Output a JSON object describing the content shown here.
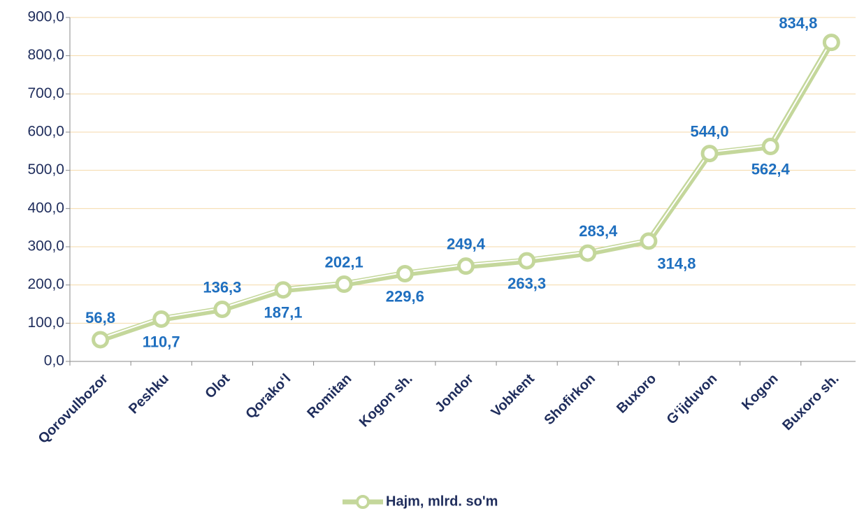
{
  "chart_data": {
    "type": "line",
    "categories": [
      "Qorovulbozor",
      "Peshku",
      "Olot",
      "Qorako‘l",
      "Romitan",
      "Kogon sh.",
      "Jondor",
      "Vobkent",
      "Shofirkon",
      "Buxoro",
      "G‘ijduvon",
      "Kogon",
      "Buxoro sh."
    ],
    "series": [
      {
        "name": "Hajm, mlrd. so'm",
        "color": "#c4d79b",
        "values": [
          56.8,
          110.7,
          136.3,
          187.1,
          202.1,
          229.6,
          249.4,
          263.3,
          283.4,
          314.8,
          544.0,
          562.4,
          834.8
        ],
        "value_labels": [
          "56,8",
          "110,7",
          "136,3",
          "187,1",
          "202,1",
          "229,6",
          "249,4",
          "263,3",
          "283,4",
          "314,8",
          "544,0",
          "562,4",
          "834,8"
        ]
      }
    ],
    "ylim": [
      0,
      900
    ],
    "yticks": [
      {
        "value": 0,
        "label": "0,0"
      },
      {
        "value": 100,
        "label": "100,0"
      },
      {
        "value": 200,
        "label": "200,0"
      },
      {
        "value": 300,
        "label": "300,0"
      },
      {
        "value": 400,
        "label": "400,0"
      },
      {
        "value": 500,
        "label": "500,0"
      },
      {
        "value": 600,
        "label": "600,0"
      },
      {
        "value": 700,
        "label": "700,0"
      },
      {
        "value": 800,
        "label": "800,0"
      },
      {
        "value": 900,
        "label": "900,0"
      }
    ],
    "grid": true,
    "legend": "bottom"
  }
}
